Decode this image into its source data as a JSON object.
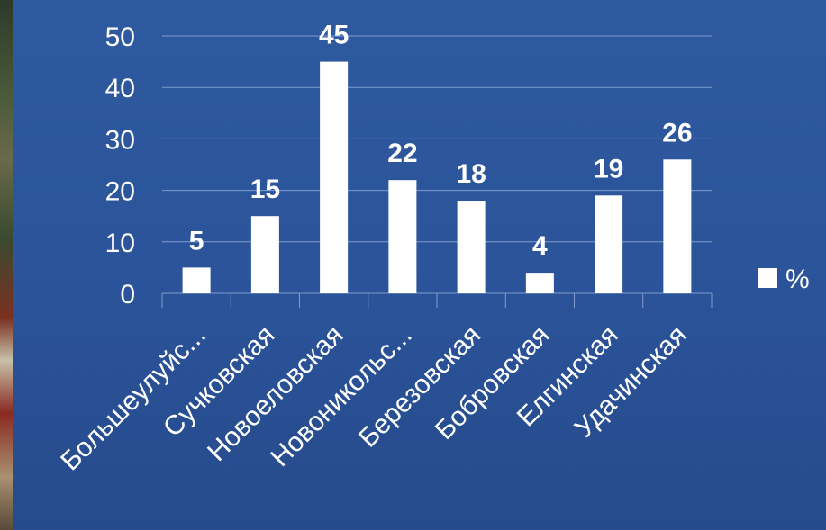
{
  "chart_data": {
    "type": "bar",
    "categories": [
      "Большеулуйс...",
      "Сучковская",
      "Новоеловская",
      "Новоникольс...",
      "Березовская",
      "Бобровская",
      "Елгинская",
      "Удачинская"
    ],
    "series": [
      {
        "name": "%",
        "values": [
          5,
          15,
          45,
          22,
          18,
          4,
          19,
          26
        ]
      }
    ],
    "ylim": [
      0,
      50
    ],
    "yticks": [
      0,
      10,
      20,
      30,
      40,
      50
    ],
    "grid": true,
    "legend": "right",
    "title": "",
    "xlabel": "",
    "ylabel": ""
  },
  "colors": {
    "background": "#2d579d",
    "bar": "#ffffff",
    "grid": "#7f9ccc",
    "text": "#ffffff"
  }
}
